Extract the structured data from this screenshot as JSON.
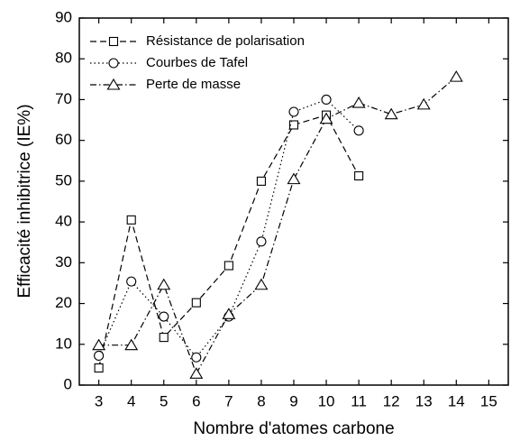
{
  "chart_data": {
    "type": "line",
    "xlabel": "Nombre d'atomes carbone",
    "ylabel": "Efficacité inhibitrice (IE%)",
    "xlim": [
      2.4,
      15.6
    ],
    "xticks": [
      3,
      4,
      5,
      6,
      7,
      8,
      9,
      10,
      11,
      12,
      13,
      14,
      15
    ],
    "ylim": [
      0,
      90
    ],
    "yticks": [
      0,
      10,
      20,
      30,
      40,
      50,
      60,
      70,
      80,
      90
    ],
    "legend": "upper left",
    "series": [
      {
        "name": "Résistance de polarisation",
        "color": "#000000",
        "marker": "square",
        "dash": "dashed",
        "x": [
          3,
          4,
          5,
          6,
          7,
          8,
          9,
          10,
          11
        ],
        "values": [
          4.2,
          40.5,
          11.7,
          20.2,
          29.3,
          50,
          63.8,
          66.2,
          51.3
        ]
      },
      {
        "name": "Courbes de Tafel",
        "color": "#000000",
        "marker": "circle",
        "dash": "dotted",
        "x": [
          3,
          4,
          5,
          6,
          7,
          8,
          9,
          10,
          11
        ],
        "values": [
          7.2,
          25.4,
          16.8,
          6.8,
          16.8,
          35.2,
          67,
          70,
          62.4
        ]
      },
      {
        "name": "Perte de masse",
        "color": "#000000",
        "marker": "triangle",
        "dash": "dashdot",
        "x": [
          3,
          4,
          5,
          6,
          7,
          8,
          9,
          10,
          11,
          12,
          13,
          14
        ],
        "values": [
          9.8,
          9.8,
          24.6,
          2.8,
          17.4,
          24.6,
          50.5,
          65.3,
          69.2,
          66.4,
          68.8,
          75.6
        ]
      }
    ]
  }
}
